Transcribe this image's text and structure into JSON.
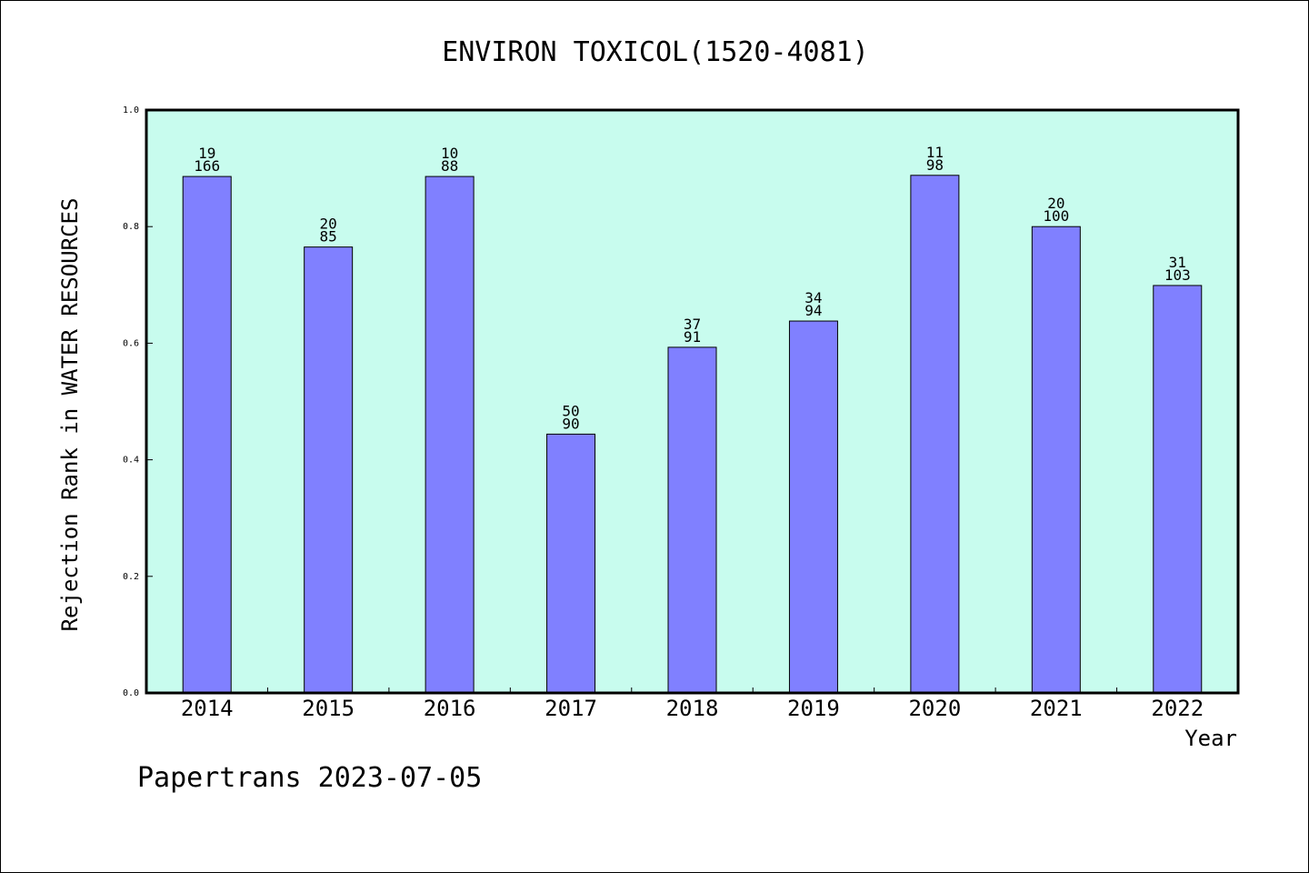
{
  "chart_data": {
    "type": "bar",
    "title": "ENVIRON TOXICOL(1520-4081)",
    "xlabel": "Year",
    "ylabel": "Rejection Rank in WATER RESOURCES",
    "ylim": [
      0,
      1.0
    ],
    "yticks": [
      "0.0",
      "0.2",
      "0.4",
      "0.6",
      "0.8",
      "1.0"
    ],
    "categories": [
      "2014",
      "2015",
      "2016",
      "2017",
      "2018",
      "2019",
      "2020",
      "2021",
      "2022"
    ],
    "values": [
      0.886,
      0.765,
      0.886,
      0.444,
      0.593,
      0.638,
      0.888,
      0.8,
      0.699
    ],
    "labels_top": [
      "19",
      "20",
      "10",
      "50",
      "37",
      "34",
      "11",
      "20",
      "31"
    ],
    "labels_bottom": [
      "166",
      "85",
      "88",
      "90",
      "91",
      "94",
      "98",
      "100",
      "103"
    ],
    "grid": false,
    "colors": {
      "plot_background": "#c8fcee",
      "bar_fill": "#8080ff",
      "bar_stroke": "#000000"
    }
  },
  "footer": "Papertrans 2023-07-05"
}
